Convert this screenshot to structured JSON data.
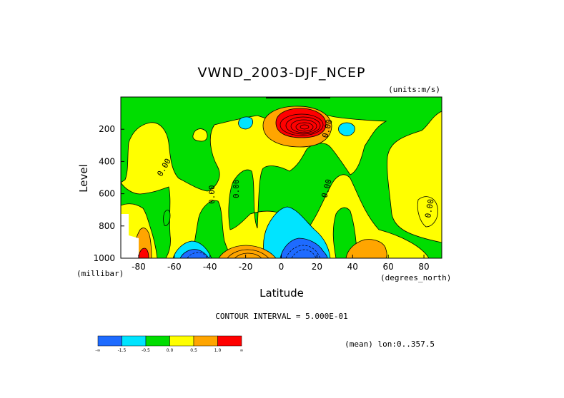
{
  "chart_data": {
    "type": "heatmap",
    "title": "VWND_2003-DJF_NCEP",
    "units_note": "(units:m/s)",
    "xlabel": "Latitude",
    "x_units": "(degrees_north)",
    "ylabel": "Level",
    "y_units": "(millibar)",
    "xlim": [
      -90,
      90
    ],
    "ylim": [
      0,
      1000
    ],
    "y_inverted": true,
    "x_ticks": [
      -80,
      -60,
      -40,
      -20,
      0,
      20,
      40,
      60,
      80
    ],
    "y_ticks": [
      200,
      400,
      600,
      800,
      1000
    ],
    "contour_interval_text": "CONTOUR INTERVAL = 5.000E-01",
    "footnote": "(mean) lon:0..357.5",
    "contour_labels": [
      "0.00",
      "0.00",
      "0.00",
      "0.00",
      "0.00",
      "0.00"
    ],
    "colorbar": {
      "colors": [
        "#1e6bff",
        "#00e4ff",
        "#00dd00",
        "#ffff00",
        "#ffa500",
        "#ff0000"
      ],
      "ticks": [
        "-∞",
        "-1.5",
        "-0.5",
        "0.0",
        "0.5",
        "1.0",
        "∞"
      ]
    },
    "regions": [
      {
        "label": "background",
        "level": "0 to 0.5",
        "color": "#ffff00"
      },
      {
        "label": "tropical-upper-max",
        "lat_center": 10,
        "level_center": 140,
        "value_class": ">1.0",
        "color": "#ff0000"
      },
      {
        "label": "polar-surface-max",
        "lat_center": -82,
        "level_center": 980,
        "value_class": ">1.0",
        "color": "#ff0000"
      },
      {
        "label": "equatorial-surface-min",
        "lat_center": 10,
        "level_center": 980,
        "value_class": "<-1.5",
        "color": "#1e6bff"
      },
      {
        "label": "southern-midlat-surface-min",
        "lat_center": -50,
        "level_center": 990,
        "value_class": "<-1.5",
        "color": "#1e6bff"
      },
      {
        "label": "southern-subtropic-surface-max",
        "lat_center": -20,
        "level_center": 990,
        "value_class": "0.5 to 1.0",
        "color": "#ffa500"
      },
      {
        "label": "northern-midlat-surface-max",
        "lat_center": 50,
        "level_center": 980,
        "value_class": "0.5 to 1.0",
        "color": "#ffa500"
      }
    ]
  }
}
